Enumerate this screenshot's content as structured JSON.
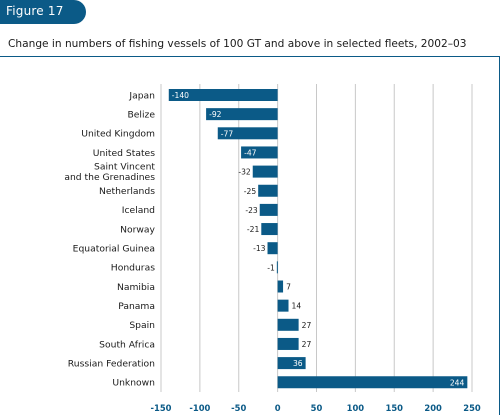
{
  "figure": {
    "label": "Figure 17"
  },
  "colors": {
    "bar": "#0b5a87",
    "grid": "#c8c8c8",
    "ticks": "#0b5a87",
    "label_in_bar": "#ffffff",
    "label_out": "#1a1a1a"
  },
  "chart_data": {
    "type": "bar",
    "orientation": "horizontal",
    "title": "Change in numbers of fishing vessels of 100 GT and above in selected fleets, 2002–03",
    "xlabel": "",
    "ylabel": "",
    "xlim": [
      -150,
      250
    ],
    "xticks": [
      -150,
      -100,
      -50,
      0,
      50,
      100,
      150,
      200,
      250
    ],
    "grid": "vertical",
    "categories": [
      [
        "Japan"
      ],
      [
        "Belize"
      ],
      [
        "United Kingdom"
      ],
      [
        "United States"
      ],
      [
        "Saint Vincent",
        "and the Grenadines"
      ],
      [
        "Netherlands"
      ],
      [
        "Iceland"
      ],
      [
        "Norway"
      ],
      [
        "Equatorial Guinea"
      ],
      [
        "Honduras"
      ],
      [
        "Namibia"
      ],
      [
        "Panama"
      ],
      [
        "Spain"
      ],
      [
        "South Africa"
      ],
      [
        "Russian Federation"
      ],
      [
        "Unknown"
      ]
    ],
    "values": [
      -140,
      -92,
      -77,
      -47,
      -32,
      -25,
      -23,
      -21,
      -13,
      -1,
      7,
      14,
      27,
      27,
      36,
      244
    ]
  }
}
